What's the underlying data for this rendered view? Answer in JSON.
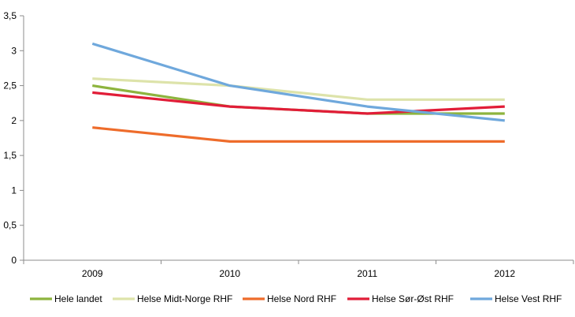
{
  "chart_data": {
    "type": "line",
    "categories": [
      "2009",
      "2010",
      "2011",
      "2012"
    ],
    "ylim": [
      0,
      3.5
    ],
    "yticks": [
      "0",
      "0,5",
      "1",
      "1,5",
      "2",
      "2,5",
      "3",
      "3,5"
    ],
    "ytick_values": [
      0,
      0.5,
      1,
      1.5,
      2,
      2.5,
      3,
      3.5
    ],
    "grid": false,
    "legend_position": "bottom",
    "series": [
      {
        "name": "Hele landet",
        "color": "#8db43e",
        "values": [
          2.5,
          2.2,
          2.1,
          2.1
        ]
      },
      {
        "name": "Helse Midt-Norge RHF",
        "color": "#dde3aa",
        "values": [
          2.6,
          2.5,
          2.3,
          2.3
        ]
      },
      {
        "name": "Helse Nord RHF",
        "color": "#ee6c2b",
        "values": [
          1.9,
          1.7,
          1.7,
          1.7
        ]
      },
      {
        "name": "Helse Sør-Øst RHF",
        "color": "#e11d38",
        "values": [
          2.4,
          2.2,
          2.1,
          2.2
        ]
      },
      {
        "name": "Helse Vest RHF",
        "color": "#6fa8dc",
        "values": [
          3.1,
          2.5,
          2.2,
          2.0
        ]
      }
    ]
  }
}
